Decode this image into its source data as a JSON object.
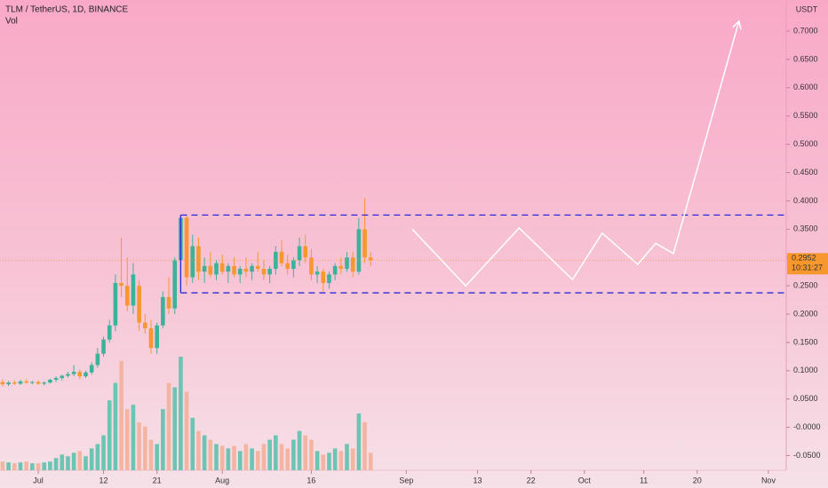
{
  "chart_data": {
    "type": "candlestick",
    "title": "TLM / TetherUS, 1D, BINANCE",
    "volume_label": "Vol",
    "y_unit": "USDT",
    "up_color": "#3bb39a",
    "down_color": "#f7982f",
    "volume_up_color": "#6cc4b3",
    "volume_down_color": "#f3b5a2",
    "x": [
      -6,
      -5,
      -4,
      -3,
      -2,
      -1,
      0,
      1,
      2,
      3,
      4,
      5,
      6,
      7,
      8,
      9,
      10,
      11,
      12,
      13,
      14,
      15,
      16,
      17,
      18,
      19,
      20,
      21,
      22,
      23,
      24,
      25,
      26,
      27,
      28,
      29,
      30,
      31,
      32,
      33,
      34,
      35,
      36,
      37,
      38,
      39,
      40,
      41,
      42,
      43,
      44,
      45,
      46,
      47,
      48,
      49,
      50,
      51,
      52,
      53,
      54,
      55,
      56
    ],
    "open": [
      0.08,
      0.076,
      0.079,
      0.077,
      0.081,
      0.079,
      0.08,
      0.077,
      0.079,
      0.084,
      0.087,
      0.091,
      0.094,
      0.098,
      0.09,
      0.097,
      0.11,
      0.13,
      0.155,
      0.18,
      0.255,
      0.25,
      0.215,
      0.25,
      0.185,
      0.175,
      0.14,
      0.18,
      0.23,
      0.21,
      0.295,
      0.37,
      0.265,
      0.32,
      0.275,
      0.285,
      0.27,
      0.29,
      0.275,
      0.285,
      0.27,
      0.28,
      0.275,
      0.285,
      0.28,
      0.27,
      0.28,
      0.31,
      0.29,
      0.28,
      0.295,
      0.32,
      0.3,
      0.27,
      0.275,
      0.255,
      0.27,
      0.285,
      0.28,
      0.3,
      0.275,
      0.35,
      0.3
    ],
    "high": [
      0.085,
      0.082,
      0.083,
      0.084,
      0.085,
      0.082,
      0.083,
      0.081,
      0.086,
      0.09,
      0.093,
      0.098,
      0.11,
      0.102,
      0.1,
      0.115,
      0.14,
      0.16,
      0.19,
      0.27,
      0.335,
      0.3,
      0.29,
      0.26,
      0.2,
      0.19,
      0.185,
      0.24,
      0.265,
      0.3,
      0.375,
      0.375,
      0.34,
      0.335,
      0.3,
      0.31,
      0.295,
      0.305,
      0.29,
      0.3,
      0.285,
      0.3,
      0.29,
      0.31,
      0.295,
      0.285,
      0.32,
      0.33,
      0.305,
      0.3,
      0.335,
      0.34,
      0.315,
      0.285,
      0.28,
      0.275,
      0.29,
      0.3,
      0.31,
      0.31,
      0.37,
      0.405,
      0.31
    ],
    "low": [
      0.072,
      0.073,
      0.075,
      0.075,
      0.077,
      0.076,
      0.075,
      0.074,
      0.077,
      0.08,
      0.083,
      0.088,
      0.09,
      0.085,
      0.087,
      0.093,
      0.105,
      0.125,
      0.15,
      0.17,
      0.23,
      0.205,
      0.2,
      0.17,
      0.165,
      0.13,
      0.13,
      0.175,
      0.2,
      0.2,
      0.24,
      0.25,
      0.255,
      0.26,
      0.255,
      0.265,
      0.26,
      0.27,
      0.255,
      0.265,
      0.255,
      0.265,
      0.26,
      0.275,
      0.26,
      0.255,
      0.27,
      0.285,
      0.27,
      0.265,
      0.285,
      0.29,
      0.26,
      0.255,
      0.24,
      0.245,
      0.26,
      0.27,
      0.275,
      0.265,
      0.27,
      0.29,
      0.285
    ],
    "close": [
      0.076,
      0.079,
      0.077,
      0.081,
      0.079,
      0.08,
      0.077,
      0.079,
      0.084,
      0.087,
      0.091,
      0.094,
      0.098,
      0.09,
      0.097,
      0.11,
      0.13,
      0.155,
      0.18,
      0.255,
      0.25,
      0.215,
      0.27,
      0.185,
      0.175,
      0.14,
      0.18,
      0.23,
      0.21,
      0.295,
      0.37,
      0.265,
      0.32,
      0.275,
      0.285,
      0.27,
      0.29,
      0.275,
      0.285,
      0.27,
      0.28,
      0.275,
      0.285,
      0.28,
      0.27,
      0.28,
      0.31,
      0.29,
      0.28,
      0.295,
      0.32,
      0.3,
      0.27,
      0.275,
      0.255,
      0.27,
      0.285,
      0.28,
      0.3,
      0.275,
      0.35,
      0.3,
      0.295
    ],
    "volume": [
      10,
      9,
      8,
      9,
      10,
      8,
      8,
      9,
      10,
      14,
      18,
      16,
      20,
      22,
      16,
      25,
      30,
      40,
      80,
      100,
      125,
      70,
      75,
      55,
      50,
      35,
      30,
      70,
      100,
      95,
      130,
      90,
      60,
      45,
      40,
      35,
      30,
      28,
      25,
      28,
      22,
      30,
      25,
      22,
      30,
      35,
      40,
      30,
      25,
      35,
      45,
      40,
      35,
      22,
      18,
      20,
      25,
      22,
      30,
      25,
      65,
      55,
      20
    ],
    "xlim": [
      -6.44,
      126.0
    ],
    "ylim": [
      -0.0759,
      0.7549
    ],
    "xticks": [
      {
        "value": 0,
        "label": "Jul"
      },
      {
        "value": 11,
        "label": "12"
      },
      {
        "value": 20,
        "label": "21"
      },
      {
        "value": 31,
        "label": "Aug"
      },
      {
        "value": 46,
        "label": "16"
      },
      {
        "value": 62,
        "label": "Sep"
      },
      {
        "value": 74,
        "label": "13"
      },
      {
        "value": 83,
        "label": "22"
      },
      {
        "value": 92,
        "label": "Oct"
      },
      {
        "value": 102,
        "label": "11"
      },
      {
        "value": 111,
        "label": "20"
      },
      {
        "value": 123,
        "label": "Nov"
      }
    ],
    "yticks": [
      {
        "value": 0.7,
        "label": "0.7000"
      },
      {
        "value": 0.65,
        "label": "0.6500"
      },
      {
        "value": 0.6,
        "label": "0.6000"
      },
      {
        "value": 0.55,
        "label": "0.5500"
      },
      {
        "value": 0.5,
        "label": "0.5000"
      },
      {
        "value": 0.45,
        "label": "0.4500"
      },
      {
        "value": 0.4,
        "label": "0.4000"
      },
      {
        "value": 0.35,
        "label": "0.3500"
      },
      {
        "value": 0.3,
        "label": "0.3000"
      },
      {
        "value": 0.25,
        "label": "0.2500"
      },
      {
        "value": 0.2,
        "label": "0.2000"
      },
      {
        "value": 0.15,
        "label": "0.1500"
      },
      {
        "value": 0.1,
        "label": "0.1000"
      },
      {
        "value": 0.05,
        "label": "0.0500"
      },
      {
        "value": 0,
        "label": "-0.0000"
      },
      {
        "value": -0.05,
        "label": "-0.0500"
      }
    ],
    "range_box": {
      "top": 0.375,
      "bottom": 0.2375,
      "start": 24,
      "color": "#2b2bd6"
    },
    "last_price": 0.2952,
    "countdown": "10:31:27",
    "projection": {
      "x": [
        63,
        72,
        81,
        90,
        95,
        101,
        104,
        107,
        118
      ],
      "y": [
        0.35,
        0.25,
        0.352,
        0.261,
        0.343,
        0.288,
        0.325,
        0.307,
        0.716
      ],
      "color": "#ffffff"
    }
  }
}
